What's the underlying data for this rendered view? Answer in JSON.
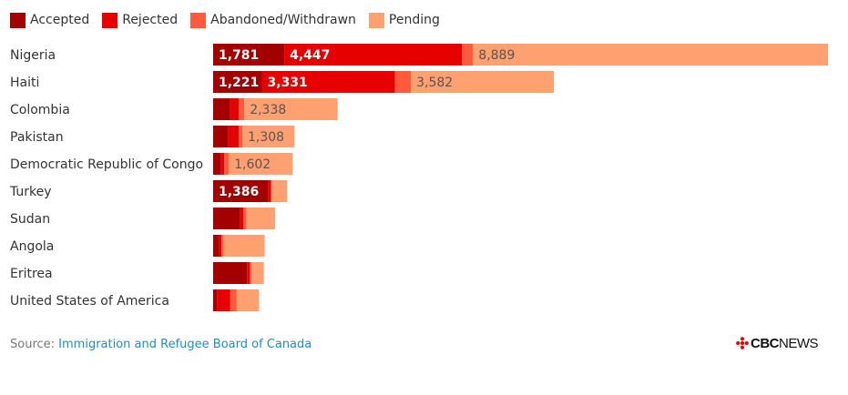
{
  "chart_data": {
    "type": "bar",
    "orientation": "horizontal",
    "stacked": true,
    "legend_position": "top-left",
    "grid": false,
    "categories": [
      "Nigeria",
      "Haiti",
      "Colombia",
      "Pakistan",
      "Democratic Republic of Congo",
      "Turkey",
      "Sudan",
      "Angola",
      "Eritrea",
      "United States of America"
    ],
    "series": [
      {
        "name": "Accepted",
        "color": "#a30000",
        "values": [
          1781,
          1221,
          430,
          380,
          200,
          1386,
          680,
          150,
          850,
          100
        ]
      },
      {
        "name": "Rejected",
        "color": "#e60000",
        "values": [
          4447,
          3331,
          210,
          260,
          80,
          60,
          80,
          60,
          70,
          330
        ]
      },
      {
        "name": "Abandoned/Withdrawn",
        "color": "#ff5a3c",
        "values": [
          280,
          400,
          140,
          90,
          110,
          30,
          70,
          50,
          40,
          160
        ]
      },
      {
        "name": "Pending",
        "color": "#ffa070",
        "values": [
          8889,
          3582,
          2338,
          1308,
          1602,
          380,
          720,
          1030,
          310,
          560
        ]
      }
    ],
    "data_labels": [
      [
        "1,781",
        "4,447",
        "",
        "8,889"
      ],
      [
        "1,221",
        "3,331",
        "",
        "3,582"
      ],
      [
        "",
        "",
        "",
        "2,338"
      ],
      [
        "",
        "",
        "",
        "1,308"
      ],
      [
        "",
        "",
        "",
        "1,602"
      ],
      [
        "1,386",
        "",
        "",
        ""
      ],
      [
        "",
        "",
        "",
        ""
      ],
      [
        "",
        "",
        "",
        ""
      ],
      [
        "",
        "",
        "",
        ""
      ],
      [
        "",
        "",
        "",
        ""
      ]
    ],
    "xlim": [
      0,
      15397
    ]
  },
  "footer": {
    "source_label": "Source: ",
    "source_link_text": "Immigration and Refugee Board of Canada",
    "logo_wordmark_bold": "CBC",
    "logo_wordmark_light": "NEWS",
    "logo_icon": "cbc-gem-icon"
  },
  "colors": {
    "label_on_dark": "#ffffff",
    "label_on_light": "#555555",
    "category_text": "#333333",
    "link": "#1a8fc8"
  }
}
